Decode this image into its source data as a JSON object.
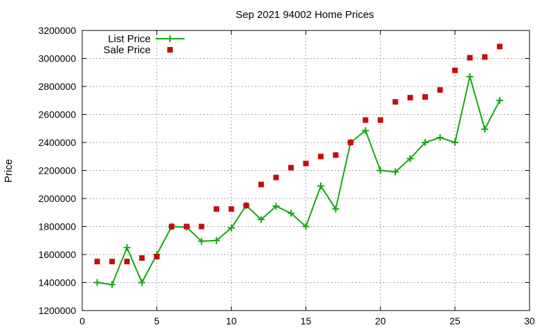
{
  "chart_data": {
    "type": "scatter",
    "title": "Sep 2021 94002 Home Prices",
    "xlabel": "",
    "ylabel": "Price",
    "xlim": [
      0,
      30
    ],
    "ylim": [
      1200000,
      3200000
    ],
    "x_ticks": [
      0,
      5,
      10,
      15,
      20,
      25,
      30
    ],
    "y_ticks": [
      1200000,
      1400000,
      1600000,
      1800000,
      2000000,
      2200000,
      2400000,
      2600000,
      2800000,
      3000000,
      3200000
    ],
    "grid": true,
    "legend_position": "top-left",
    "series": [
      {
        "name": "List Price",
        "style": "line-plus",
        "color": "#11a811",
        "x": [
          1,
          2,
          3,
          4,
          5,
          6,
          7,
          8,
          9,
          10,
          11,
          12,
          13,
          14,
          15,
          16,
          17,
          18,
          19,
          20,
          21,
          22,
          23,
          24,
          25,
          26,
          27,
          28
        ],
        "values": [
          1400000,
          1385000,
          1650000,
          1400000,
          1600000,
          1800000,
          1795000,
          1695000,
          1700000,
          1790000,
          1950000,
          1850000,
          1945000,
          1895000,
          1800000,
          2090000,
          1925000,
          2400000,
          2485000,
          2200000,
          2190000,
          2285000,
          2400000,
          2435000,
          2400000,
          2870000,
          2495000,
          2700000
        ]
      },
      {
        "name": "Sale Price",
        "style": "square",
        "color": "#c40d0d",
        "x": [
          1,
          2,
          3,
          4,
          5,
          6,
          7,
          8,
          9,
          10,
          11,
          12,
          13,
          14,
          15,
          16,
          17,
          18,
          19,
          20,
          21,
          22,
          23,
          24,
          25,
          26,
          27,
          28
        ],
        "values": [
          1550000,
          1550000,
          1550000,
          1575000,
          1585000,
          1800000,
          1800000,
          1800000,
          1925000,
          1925000,
          1950000,
          2100000,
          2150000,
          2220000,
          2250000,
          2300000,
          2310000,
          2400000,
          2560000,
          2560000,
          2690000,
          2720000,
          2725000,
          2775000,
          2915000,
          3005000,
          3010000,
          3085000
        ]
      }
    ]
  }
}
